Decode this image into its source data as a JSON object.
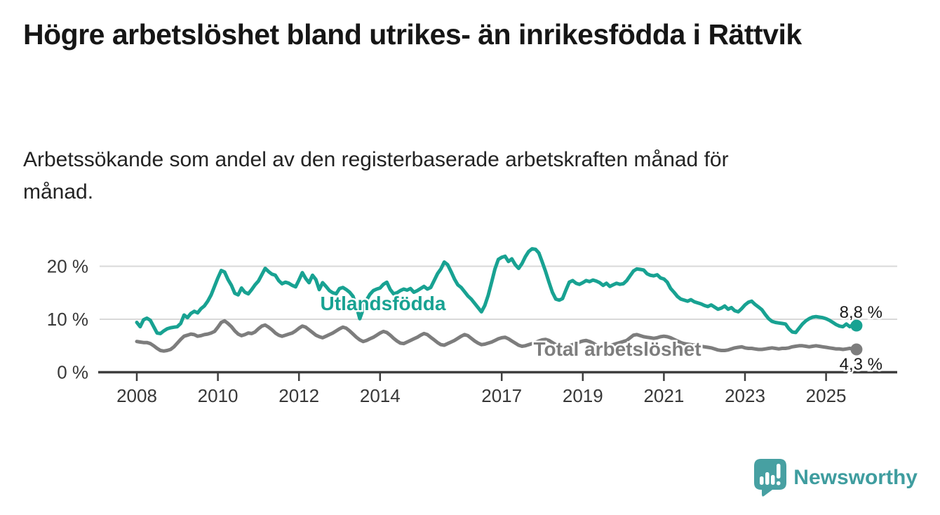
{
  "header": {
    "title": "Högre arbetslöshet bland utrikes- än inrikesfödda i Rättvik",
    "subtitle": "Arbetssökande som andel av den registerbaserade arbetskraften månad för månad."
  },
  "chart_data": {
    "type": "line",
    "title": "",
    "xlabel": "",
    "ylabel": "",
    "unit": "%",
    "frequency": "monthly",
    "x_start": {
      "year": 2008,
      "month": 1
    },
    "x_end": {
      "year": 2025,
      "month": 10
    },
    "ylim": [
      0,
      25
    ],
    "grid": "horizontal",
    "y_ticks": [
      {
        "value": 0,
        "label": "0 %"
      },
      {
        "value": 10,
        "label": "10 %"
      },
      {
        "value": 20,
        "label": "20 %"
      }
    ],
    "x_ticks": [
      2008,
      2010,
      2012,
      2014,
      2017,
      2019,
      2021,
      2023,
      2025
    ],
    "series": [
      {
        "name": "Utlandsfödda",
        "color": "#18a292",
        "end_label": "8,8 %",
        "end_value": 8.8,
        "values": [
          9.4,
          8.6,
          9.9,
          10.2,
          9.8,
          8.6,
          7.4,
          7.3,
          7.8,
          8.2,
          8.4,
          8.5,
          8.6,
          9.2,
          10.8,
          10.3,
          11.1,
          11.5,
          11.2,
          12.0,
          12.5,
          13.4,
          14.6,
          16.2,
          17.8,
          19.2,
          18.9,
          17.5,
          16.4,
          14.9,
          14.6,
          15.9,
          15.1,
          14.8,
          15.6,
          16.5,
          17.2,
          18.4,
          19.6,
          19.0,
          18.5,
          18.3,
          17.3,
          16.7,
          17.0,
          16.8,
          16.4,
          16.1,
          17.4,
          18.8,
          17.7,
          16.9,
          18.3,
          17.5,
          15.6,
          16.9,
          16.2,
          15.4,
          15.0,
          14.8,
          15.8,
          16.0,
          15.6,
          15.1,
          14.3,
          12.4,
          10.1,
          11.9,
          13.6,
          14.7,
          15.4,
          15.7,
          15.9,
          16.6,
          17.0,
          15.6,
          14.8,
          15.0,
          15.4,
          15.7,
          15.5,
          15.8,
          15.1,
          15.4,
          15.8,
          16.2,
          15.7,
          16.0,
          17.3,
          18.6,
          19.5,
          20.8,
          20.3,
          19.0,
          17.6,
          16.5,
          16.0,
          15.2,
          14.4,
          13.8,
          13.0,
          12.2,
          11.4,
          12.6,
          14.5,
          17.0,
          19.5,
          21.3,
          21.7,
          21.9,
          20.9,
          21.4,
          20.3,
          19.6,
          20.5,
          21.8,
          22.8,
          23.3,
          23.2,
          22.5,
          20.8,
          19.0,
          17.0,
          15.1,
          13.8,
          13.6,
          13.9,
          15.5,
          17.0,
          17.3,
          16.8,
          16.6,
          16.9,
          17.3,
          17.1,
          17.4,
          17.2,
          16.9,
          16.4,
          16.8,
          16.2,
          16.5,
          16.8,
          16.6,
          16.7,
          17.3,
          18.2,
          19.1,
          19.5,
          19.4,
          19.3,
          18.6,
          18.3,
          18.2,
          18.4,
          17.8,
          17.6,
          17.0,
          15.8,
          15.1,
          14.3,
          13.8,
          13.6,
          13.4,
          13.7,
          13.3,
          13.1,
          12.9,
          12.6,
          12.4,
          12.7,
          12.3,
          11.9,
          12.1,
          12.5,
          11.9,
          12.2,
          11.6,
          11.4,
          12.0,
          12.7,
          13.2,
          13.4,
          12.8,
          12.3,
          11.8,
          10.9,
          10.1,
          9.6,
          9.4,
          9.3,
          9.2,
          9.1,
          8.2,
          7.6,
          7.5,
          8.3,
          9.1,
          9.7,
          10.1,
          10.4,
          10.5,
          10.4,
          10.3,
          10.1,
          9.8,
          9.4,
          9.0,
          8.7,
          8.6,
          9.1,
          8.6,
          9.0,
          8.8
        ]
      },
      {
        "name": "Total arbetslöshet",
        "color": "#7d7d7d",
        "end_label": "4,3 %",
        "end_value": 4.3,
        "values": [
          5.8,
          5.7,
          5.6,
          5.6,
          5.4,
          5.0,
          4.5,
          4.1,
          4.0,
          4.1,
          4.3,
          4.8,
          5.5,
          6.2,
          6.8,
          7.0,
          7.2,
          7.1,
          6.8,
          6.9,
          7.1,
          7.2,
          7.4,
          7.7,
          8.5,
          9.4,
          9.7,
          9.2,
          8.6,
          7.8,
          7.2,
          6.9,
          7.1,
          7.4,
          7.3,
          7.6,
          8.2,
          8.7,
          8.9,
          8.5,
          8.0,
          7.4,
          7.0,
          6.8,
          7.0,
          7.2,
          7.4,
          7.8,
          8.3,
          8.7,
          8.5,
          8.0,
          7.5,
          7.0,
          6.7,
          6.5,
          6.8,
          7.1,
          7.4,
          7.8,
          8.2,
          8.5,
          8.3,
          7.8,
          7.2,
          6.6,
          6.1,
          5.8,
          6.0,
          6.3,
          6.6,
          7.0,
          7.4,
          7.7,
          7.5,
          7.0,
          6.4,
          5.9,
          5.5,
          5.4,
          5.7,
          6.0,
          6.3,
          6.6,
          7.0,
          7.3,
          7.1,
          6.6,
          6.1,
          5.6,
          5.2,
          5.1,
          5.4,
          5.7,
          6.0,
          6.4,
          6.8,
          7.1,
          6.9,
          6.4,
          5.9,
          5.5,
          5.2,
          5.3,
          5.5,
          5.7,
          6.0,
          6.3,
          6.5,
          6.6,
          6.3,
          5.9,
          5.5,
          5.1,
          4.9,
          5.0,
          5.2,
          5.4,
          5.6,
          5.9,
          6.1,
          6.2,
          6.0,
          5.6,
          5.2,
          4.9,
          4.7,
          4.8,
          5.0,
          5.2,
          5.4,
          5.7,
          5.9,
          6.0,
          5.8,
          5.5,
          5.1,
          4.8,
          4.7,
          4.8,
          5.0,
          5.2,
          5.4,
          5.6,
          5.8,
          6.0,
          6.5,
          7.0,
          7.1,
          6.9,
          6.7,
          6.6,
          6.5,
          6.4,
          6.5,
          6.7,
          6.8,
          6.7,
          6.5,
          6.2,
          5.9,
          5.6,
          5.4,
          5.3,
          5.2,
          5.1,
          5.0,
          4.9,
          4.8,
          4.7,
          4.6,
          4.4,
          4.2,
          4.1,
          4.1,
          4.2,
          4.4,
          4.6,
          4.7,
          4.8,
          4.6,
          4.5,
          4.5,
          4.4,
          4.3,
          4.3,
          4.4,
          4.5,
          4.6,
          4.5,
          4.4,
          4.5,
          4.5,
          4.6,
          4.8,
          4.9,
          5.0,
          5.0,
          4.9,
          4.8,
          4.9,
          5.0,
          4.9,
          4.8,
          4.7,
          4.6,
          4.5,
          4.4,
          4.4,
          4.3,
          4.4,
          4.5,
          4.4,
          4.3
        ]
      }
    ]
  },
  "branding": {
    "logo_text": "Newsworthy",
    "logo_color": "#3f9d9f"
  },
  "colors": {
    "axis": "#3e3e3e",
    "gridline": "#d9d9d9",
    "tick_label": "#383838",
    "value_label": "#1a1a1a"
  }
}
